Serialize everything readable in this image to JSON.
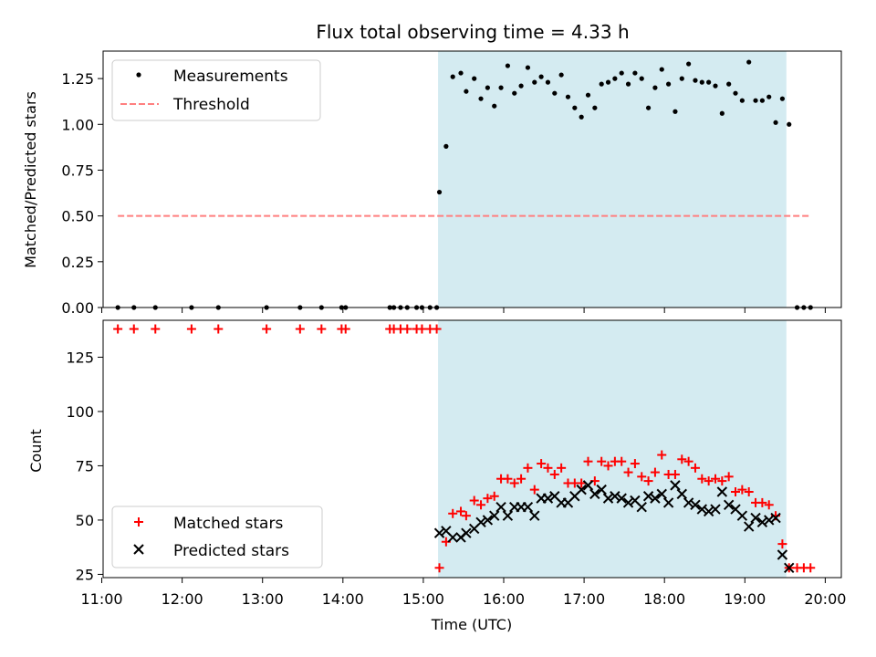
{
  "chart_data": [
    {
      "type": "scatter",
      "title": "Flux total observing time = 4.33 h",
      "ylabel": "Matched/Predicted stars",
      "ylim": [
        0,
        1.4
      ],
      "yticks": [
        0.0,
        0.25,
        0.5,
        0.75,
        1.0,
        1.25
      ],
      "ytick_labels": [
        "0.00",
        "0.25",
        "0.50",
        "0.75",
        "1.00",
        "1.25"
      ],
      "shaded_interval": [
        "15:11",
        "19:31"
      ],
      "shade_color": "#d4ebf1",
      "legend_position": "top-left",
      "series": [
        {
          "name": "Measurements",
          "marker": "dot",
          "color": "#000000",
          "points": [
            [
              "11:12",
              0
            ],
            [
              "11:24",
              0
            ],
            [
              "11:40",
              0
            ],
            [
              "12:07",
              0
            ],
            [
              "12:27",
              0
            ],
            [
              "13:03",
              0
            ],
            [
              "13:28",
              0
            ],
            [
              "13:44",
              0
            ],
            [
              "13:59",
              0
            ],
            [
              "14:02",
              0
            ],
            [
              "14:35",
              0
            ],
            [
              "14:38",
              0
            ],
            [
              "14:43",
              0
            ],
            [
              "14:48",
              0
            ],
            [
              "14:55",
              0
            ],
            [
              "14:59",
              0
            ],
            [
              "15:05",
              0
            ],
            [
              "15:10",
              0
            ],
            [
              "15:12",
              0.63
            ],
            [
              "15:17",
              0.88
            ],
            [
              "15:22",
              1.26
            ],
            [
              "15:28",
              1.28
            ],
            [
              "15:32",
              1.18
            ],
            [
              "15:38",
              1.25
            ],
            [
              "15:43",
              1.14
            ],
            [
              "15:48",
              1.2
            ],
            [
              "15:53",
              1.1
            ],
            [
              "15:58",
              1.2
            ],
            [
              "16:03",
              1.32
            ],
            [
              "16:08",
              1.17
            ],
            [
              "16:13",
              1.21
            ],
            [
              "16:18",
              1.31
            ],
            [
              "16:23",
              1.23
            ],
            [
              "16:28",
              1.26
            ],
            [
              "16:33",
              1.23
            ],
            [
              "16:38",
              1.17
            ],
            [
              "16:43",
              1.27
            ],
            [
              "16:48",
              1.15
            ],
            [
              "16:53",
              1.09
            ],
            [
              "16:58",
              1.04
            ],
            [
              "17:03",
              1.16
            ],
            [
              "17:08",
              1.09
            ],
            [
              "17:13",
              1.22
            ],
            [
              "17:18",
              1.23
            ],
            [
              "17:23",
              1.25
            ],
            [
              "17:28",
              1.28
            ],
            [
              "17:33",
              1.22
            ],
            [
              "17:38",
              1.28
            ],
            [
              "17:43",
              1.25
            ],
            [
              "17:48",
              1.09
            ],
            [
              "17:53",
              1.2
            ],
            [
              "17:58",
              1.3
            ],
            [
              "18:03",
              1.22
            ],
            [
              "18:08",
              1.07
            ],
            [
              "18:13",
              1.25
            ],
            [
              "18:18",
              1.33
            ],
            [
              "18:23",
              1.24
            ],
            [
              "18:28",
              1.23
            ],
            [
              "18:33",
              1.23
            ],
            [
              "18:38",
              1.21
            ],
            [
              "18:43",
              1.06
            ],
            [
              "18:48",
              1.22
            ],
            [
              "18:53",
              1.17
            ],
            [
              "18:58",
              1.13
            ],
            [
              "19:03",
              1.34
            ],
            [
              "19:08",
              1.13
            ],
            [
              "19:13",
              1.13
            ],
            [
              "19:18",
              1.15
            ],
            [
              "19:23",
              1.01
            ],
            [
              "19:28",
              1.14
            ],
            [
              "19:33",
              1.0
            ],
            [
              "19:39",
              0
            ],
            [
              "19:44",
              0
            ],
            [
              "19:49",
              0
            ]
          ]
        },
        {
          "name": "Threshold",
          "type": "line",
          "style": "dashed",
          "color": "#ff7f7f",
          "points": [
            [
              "11:12",
              0.5
            ],
            [
              "19:49",
              0.5
            ]
          ]
        }
      ]
    },
    {
      "type": "scatter",
      "xlabel": "Time (UTC)",
      "ylabel": "Count",
      "ylim": [
        23.5,
        142
      ],
      "yticks": [
        25,
        50,
        75,
        100,
        125
      ],
      "ytick_labels": [
        "25",
        "50",
        "75",
        "100",
        "125"
      ],
      "xlim": [
        "11:01",
        "20:12"
      ],
      "xticks": [
        "11:00",
        "12:00",
        "13:00",
        "14:00",
        "15:00",
        "16:00",
        "17:00",
        "18:00",
        "19:00",
        "20:00"
      ],
      "shaded_interval": [
        "15:11",
        "19:31"
      ],
      "shade_color": "#d4ebf1",
      "legend_position": "bottom-left",
      "series": [
        {
          "name": "Matched stars",
          "marker": "plus",
          "color": "#ff0000",
          "points": [
            [
              "11:12",
              138
            ],
            [
              "11:24",
              138
            ],
            [
              "11:40",
              138
            ],
            [
              "12:07",
              138
            ],
            [
              "12:27",
              138
            ],
            [
              "13:03",
              138
            ],
            [
              "13:28",
              138
            ],
            [
              "13:44",
              138
            ],
            [
              "13:59",
              138
            ],
            [
              "14:02",
              138
            ],
            [
              "14:35",
              138
            ],
            [
              "14:38",
              138
            ],
            [
              "14:43",
              138
            ],
            [
              "14:48",
              138
            ],
            [
              "14:55",
              138
            ],
            [
              "14:59",
              138
            ],
            [
              "15:05",
              138
            ],
            [
              "15:10",
              138
            ],
            [
              "15:12",
              28
            ],
            [
              "15:17",
              40
            ],
            [
              "15:22",
              53
            ],
            [
              "15:28",
              54
            ],
            [
              "15:32",
              52
            ],
            [
              "15:38",
              59
            ],
            [
              "15:43",
              57
            ],
            [
              "15:48",
              60
            ],
            [
              "15:53",
              61
            ],
            [
              "15:58",
              69
            ],
            [
              "16:03",
              69
            ],
            [
              "16:08",
              67
            ],
            [
              "16:13",
              69
            ],
            [
              "16:18",
              74
            ],
            [
              "16:23",
              64
            ],
            [
              "16:28",
              76
            ],
            [
              "16:33",
              74
            ],
            [
              "16:38",
              71
            ],
            [
              "16:43",
              74
            ],
            [
              "16:48",
              67
            ],
            [
              "16:53",
              67
            ],
            [
              "16:58",
              67
            ],
            [
              "17:03",
              77
            ],
            [
              "17:08",
              68
            ],
            [
              "17:13",
              77
            ],
            [
              "17:18",
              75
            ],
            [
              "17:23",
              77
            ],
            [
              "17:28",
              77
            ],
            [
              "17:33",
              72
            ],
            [
              "17:38",
              76
            ],
            [
              "17:43",
              70
            ],
            [
              "17:48",
              68
            ],
            [
              "17:53",
              72
            ],
            [
              "17:58",
              80
            ],
            [
              "18:03",
              71
            ],
            [
              "18:08",
              71
            ],
            [
              "18:13",
              78
            ],
            [
              "18:18",
              77
            ],
            [
              "18:23",
              74
            ],
            [
              "18:28",
              69
            ],
            [
              "18:33",
              68
            ],
            [
              "18:38",
              69
            ],
            [
              "18:43",
              68
            ],
            [
              "18:48",
              70
            ],
            [
              "18:53",
              63
            ],
            [
              "18:58",
              64
            ],
            [
              "19:03",
              63
            ],
            [
              "19:08",
              58
            ],
            [
              "19:13",
              58
            ],
            [
              "19:18",
              57
            ],
            [
              "19:23",
              52
            ],
            [
              "19:28",
              39
            ],
            [
              "19:33",
              28
            ],
            [
              "19:39",
              28
            ],
            [
              "19:44",
              28
            ],
            [
              "19:49",
              28
            ]
          ]
        },
        {
          "name": "Predicted stars",
          "marker": "x",
          "color": "#000000",
          "points": [
            [
              "15:12",
              44
            ],
            [
              "15:17",
              45
            ],
            [
              "15:22",
              42
            ],
            [
              "15:28",
              42
            ],
            [
              "15:32",
              44
            ],
            [
              "15:38",
              46
            ],
            [
              "15:43",
              49
            ],
            [
              "15:48",
              50
            ],
            [
              "15:53",
              52
            ],
            [
              "15:58",
              56
            ],
            [
              "16:03",
              52
            ],
            [
              "16:08",
              56
            ],
            [
              "16:13",
              56
            ],
            [
              "16:18",
              56
            ],
            [
              "16:23",
              52
            ],
            [
              "16:28",
              60
            ],
            [
              "16:33",
              60
            ],
            [
              "16:38",
              61
            ],
            [
              "16:43",
              58
            ],
            [
              "16:48",
              58
            ],
            [
              "16:53",
              61
            ],
            [
              "16:58",
              64
            ],
            [
              "17:03",
              66
            ],
            [
              "17:08",
              62
            ],
            [
              "17:13",
              64
            ],
            [
              "17:18",
              60
            ],
            [
              "17:23",
              61
            ],
            [
              "17:28",
              60
            ],
            [
              "17:33",
              58
            ],
            [
              "17:38",
              59
            ],
            [
              "17:43",
              56
            ],
            [
              "17:48",
              61
            ],
            [
              "17:53",
              60
            ],
            [
              "17:58",
              62
            ],
            [
              "18:03",
              58
            ],
            [
              "18:08",
              66
            ],
            [
              "18:13",
              62
            ],
            [
              "18:18",
              58
            ],
            [
              "18:23",
              57
            ],
            [
              "18:28",
              55
            ],
            [
              "18:33",
              54
            ],
            [
              "18:38",
              55
            ],
            [
              "18:43",
              63
            ],
            [
              "18:48",
              57
            ],
            [
              "18:53",
              55
            ],
            [
              "18:58",
              52
            ],
            [
              "19:03",
              47
            ],
            [
              "19:08",
              51
            ],
            [
              "19:13",
              49
            ],
            [
              "19:18",
              50
            ],
            [
              "19:23",
              51
            ],
            [
              "19:28",
              34
            ],
            [
              "19:33",
              28
            ]
          ]
        }
      ]
    }
  ]
}
